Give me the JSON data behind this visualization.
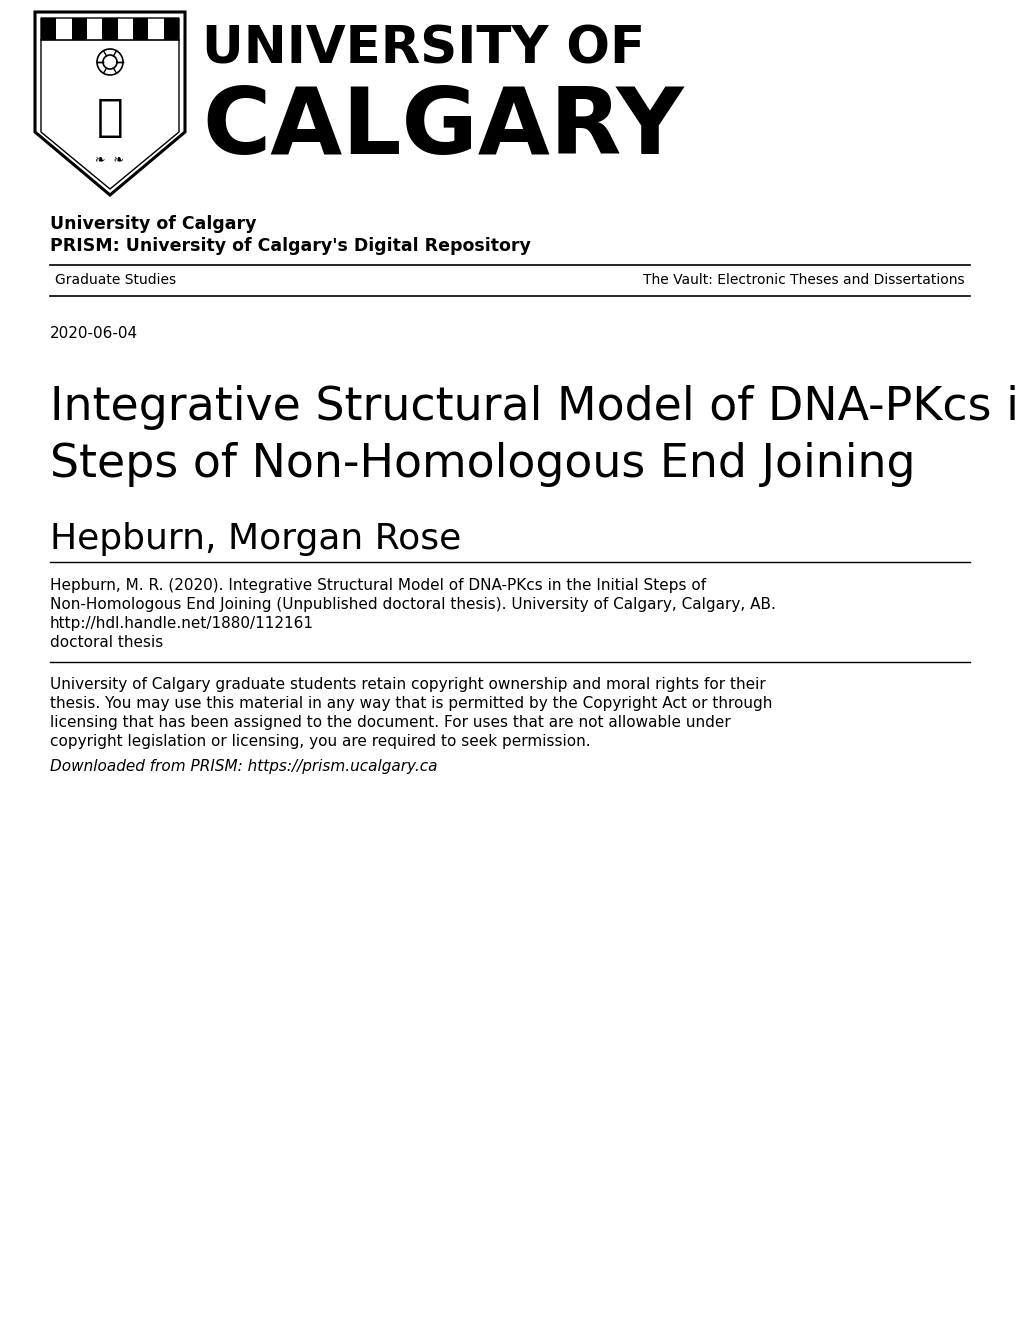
{
  "bg_color": "#ffffff",
  "institution_line1": "University of Calgary",
  "institution_line2": "PRISM: University of Calgary's Digital Repository",
  "nav_left": "Graduate Studies",
  "nav_right": "The Vault: Electronic Theses and Dissertations",
  "date": "2020-06-04",
  "title_line1": "Integrative Structural Model of DNA-PKcs in the Initial",
  "title_line2": "Steps of Non-Homologous End Joining",
  "author": "Hepburn, Morgan Rose",
  "citation_lines": [
    "Hepburn, M. R. (2020). Integrative Structural Model of DNA-PKcs in the Initial Steps of",
    "Non-Homologous End Joining (Unpublished doctoral thesis). University of Calgary, Calgary, AB.",
    "http://hdl.handle.net/1880/112161",
    "doctoral thesis"
  ],
  "copyright_lines": [
    "University of Calgary graduate students retain copyright ownership and moral rights for their",
    "thesis. You may use this material in any way that is permitted by the Copyright Act or through",
    "licensing that has been assigned to the document. For uses that are not allowable under",
    "copyright legislation or licensing, you are required to seek permission."
  ],
  "download_line": "Downloaded from PRISM: https://prism.ucalgary.ca",
  "fig_width": 10.2,
  "fig_height": 13.2,
  "dpi": 100
}
